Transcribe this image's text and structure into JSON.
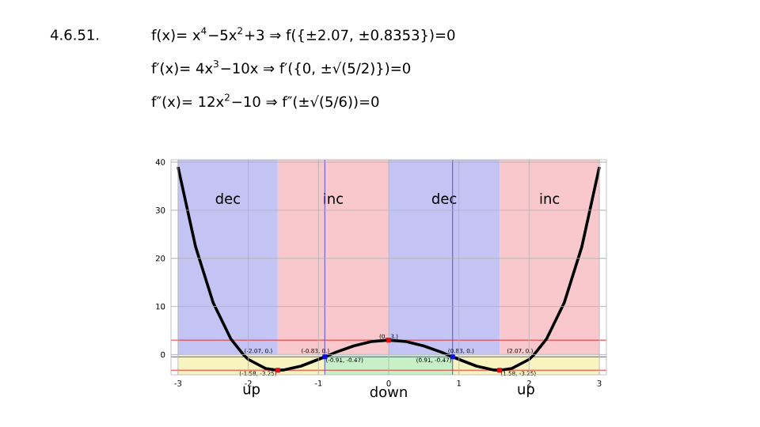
{
  "chart_data": {
    "type": "line",
    "title": "4.6.51.",
    "x": [
      -3,
      -2.75,
      -2.5,
      -2.25,
      -2.07,
      -2,
      -1.75,
      -1.58,
      -1.5,
      -1.25,
      -1,
      -0.91,
      -0.83,
      -0.75,
      -0.5,
      -0.25,
      0,
      0.25,
      0.5,
      0.75,
      0.83,
      0.91,
      1,
      1.25,
      1.5,
      1.58,
      1.75,
      2,
      2.07,
      2.25,
      2.5,
      2.75,
      3
    ],
    "series": [
      {
        "color": "#000000",
        "values": [
          39,
          22.4,
          10.8,
          3.3,
          0,
          -1,
          -2.9,
          -3.25,
          -3.2,
          -2.4,
          -1,
          -0.47,
          0,
          0.5,
          1.8,
          2.7,
          3,
          2.7,
          1.8,
          0.5,
          0,
          -0.47,
          -1,
          -2.4,
          -3.2,
          -3.25,
          -2.9,
          -1,
          0,
          3.3,
          10.8,
          22.4,
          39
        ]
      },
      {
        "type": "scatter",
        "marker": "square",
        "color": "#e01010",
        "x": [
          -1.58,
          0,
          1.58
        ],
        "values": [
          -3.25,
          3,
          -3.25
        ]
      },
      {
        "type": "scatter",
        "marker": "square",
        "color": "#1010e0",
        "x": [
          -0.91,
          0.91
        ],
        "values": [
          -0.47,
          -0.47
        ]
      }
    ],
    "xlim": [
      -3.1,
      3.1
    ],
    "ylim": [
      -4.2,
      40.5
    ],
    "xticks": [
      -3,
      -2,
      -1,
      0,
      1,
      2,
      3
    ],
    "yticks": [
      0,
      10,
      20,
      30,
      40
    ],
    "grid": true,
    "bands": [
      {
        "axis": "x",
        "from": -3,
        "to": -1.58,
        "label": "dec",
        "color": "#c4c4f4"
      },
      {
        "axis": "x",
        "from": -1.58,
        "to": 0,
        "label": "inc",
        "color": "#f8c8cc"
      },
      {
        "axis": "x",
        "from": 0,
        "to": 1.58,
        "label": "dec",
        "color": "#c4c4f4"
      },
      {
        "axis": "x",
        "from": 1.58,
        "to": 3,
        "label": "inc",
        "color": "#f8c8cc"
      },
      {
        "axis": "x",
        "from": -3,
        "to": -0.91,
        "label": "up",
        "color": "#f8f4c0"
      },
      {
        "axis": "x",
        "from": -0.91,
        "to": 0.91,
        "label": "down",
        "color": "#c8f0c8"
      },
      {
        "axis": "x",
        "from": 0.91,
        "to": 3,
        "label": "up",
        "color": "#f8f4c0"
      }
    ],
    "ref_lines": [
      {
        "axis": "y",
        "value": 3,
        "color": "#e83030"
      },
      {
        "axis": "y",
        "value": -3.25,
        "color": "#e83030"
      },
      {
        "axis": "y",
        "value": -0.47,
        "color": "#5050e0"
      },
      {
        "axis": "x",
        "value": -0.91,
        "color": "#5050e0"
      },
      {
        "axis": "x",
        "value": 0.91,
        "color": "#5050e0"
      }
    ],
    "annotations": [
      "f(x)= x$^{4}$−5x$^{2}$+3 ⇒ f({±2.07, ±0.8353})=0",
      "f′(x)= 4x$^{3}$−10x ⇒ f′({0, ±√(5/2)})=0",
      "f″(x)= 12x$^{2}$−10 ⇒ f″(±√(5/6))=0",
      {
        "text": "(-2.07, 0.)",
        "x": -2.07,
        "y": 0
      },
      {
        "text": "(-1.58, -3.25)",
        "x": -1.58,
        "y": -3.25
      },
      {
        "text": "(-0.91, -0.47)",
        "x": -0.91,
        "y": -0.47
      },
      {
        "text": "(-0.83, 0.)",
        "x": -0.83,
        "y": 0
      },
      {
        "text": "(0., 3.)",
        "x": 0,
        "y": 3
      },
      {
        "text": "(0.91, -0.47)",
        "x": 0.91,
        "y": -0.47
      },
      {
        "text": "(0.83, 0.)",
        "x": 0.83,
        "y": 0
      },
      {
        "text": "(1.58, -3.25)",
        "x": 1.58,
        "y": -3.25
      },
      {
        "text": "(2.07, 0.)",
        "x": 2.07,
        "y": 0
      }
    ]
  }
}
